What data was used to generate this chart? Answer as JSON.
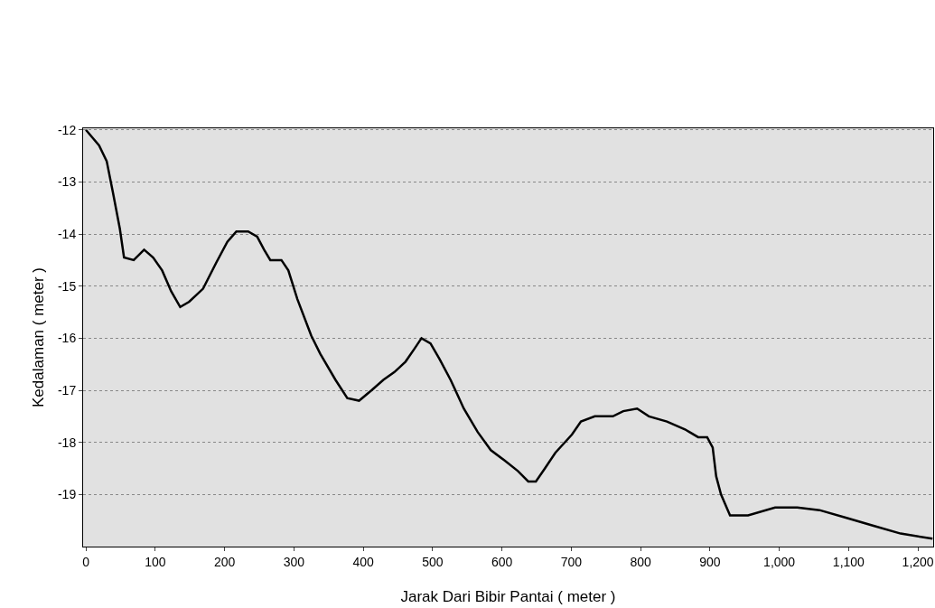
{
  "chart_data": {
    "type": "line",
    "xlabel": "Jarak Dari Bibir Pantai ( meter )",
    "ylabel": "Kedalaman ( meter )",
    "x": [
      0,
      19,
      30,
      39,
      49,
      55,
      69,
      84,
      97,
      110,
      123,
      136,
      149,
      169,
      188,
      204,
      217,
      234,
      247,
      257,
      266,
      282,
      292,
      305,
      325,
      338,
      360,
      377,
      394,
      412,
      429,
      445,
      461,
      474,
      484,
      497,
      510,
      526,
      545,
      565,
      584,
      604,
      623,
      638,
      649,
      662,
      677,
      701,
      714,
      734,
      760,
      775,
      795,
      812,
      838,
      864,
      883,
      896,
      904,
      909,
      916,
      929,
      955,
      994,
      1026,
      1058,
      1097,
      1136,
      1175,
      1221
    ],
    "series": [
      {
        "color": "#000000",
        "values": [
          -12,
          -12.3,
          -12.6,
          -13.2,
          -13.9,
          -14.45,
          -14.5,
          -14.3,
          -14.45,
          -14.7,
          -15.1,
          -15.4,
          -15.3,
          -15.05,
          -14.55,
          -14.15,
          -13.95,
          -13.95,
          -14.05,
          -14.3,
          -14.5,
          -14.5,
          -14.7,
          -15.25,
          -15.95,
          -16.3,
          -16.8,
          -17.15,
          -17.2,
          -17.0,
          -16.8,
          -16.65,
          -16.45,
          -16.2,
          -16.0,
          -16.1,
          -16.4,
          -16.8,
          -17.35,
          -17.8,
          -18.15,
          -18.35,
          -18.55,
          -18.75,
          -18.75,
          -18.5,
          -18.2,
          -17.85,
          -17.6,
          -17.5,
          -17.5,
          -17.4,
          -17.35,
          -17.5,
          -17.6,
          -17.75,
          -17.9,
          -17.9,
          -18.1,
          -18.65,
          -19.0,
          -19.4,
          -19.4,
          -19.25,
          -19.25,
          -19.3,
          -19.45,
          -19.6,
          -19.75,
          -19.85
        ]
      }
    ],
    "xlim": [
      -4,
      1222
    ],
    "ylim": [
      -20,
      -11.97
    ],
    "xticks": [
      0,
      100,
      200,
      300,
      400,
      500,
      600,
      700,
      800,
      900,
      {
        "value": 1000,
        "label": "1,000"
      },
      {
        "value": 1100,
        "label": "1,100"
      },
      {
        "value": 1200,
        "label": "1,200"
      }
    ],
    "yticks": [
      -12,
      -13,
      -14,
      -15,
      -16,
      -17,
      -18,
      -19
    ],
    "grid": "y",
    "marker": "none",
    "line_style": "solid"
  }
}
